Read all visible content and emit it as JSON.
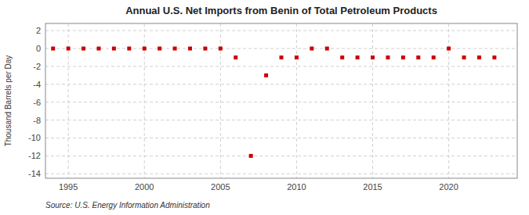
{
  "chart_data": {
    "type": "scatter",
    "title": "Annual U.S. Net Imports from Benin of Total Petroleum Products",
    "y_label": "Thousand Barrels per Day",
    "annotations": [
      "Source: U.S. Energy Information Administration"
    ],
    "x": [
      1994,
      1995,
      1996,
      1997,
      1998,
      1999,
      2000,
      2001,
      2002,
      2003,
      2004,
      2005,
      2006,
      2007,
      2008,
      2009,
      2010,
      2011,
      2012,
      2013,
      2014,
      2015,
      2016,
      2017,
      2018,
      2019,
      2020,
      2021,
      2022,
      2023
    ],
    "values": [
      0,
      0,
      0,
      0,
      0,
      0,
      0,
      0,
      0,
      0,
      0,
      0,
      -1,
      -12,
      -3,
      -1,
      -1,
      0,
      0,
      -1,
      -1,
      -1,
      -1,
      -1,
      -1,
      -1,
      0,
      -1,
      -1,
      -1
    ],
    "color": "#cc0000",
    "marker": "square",
    "xlim": [
      1993.5,
      2024.5
    ],
    "ylim": [
      -14.5,
      2.8
    ],
    "xticks": [
      1995,
      2000,
      2005,
      2010,
      2015,
      2020
    ],
    "yticks": [
      2,
      0,
      -2,
      -4,
      -6,
      -8,
      -10,
      -12,
      -14
    ],
    "grid": true
  }
}
